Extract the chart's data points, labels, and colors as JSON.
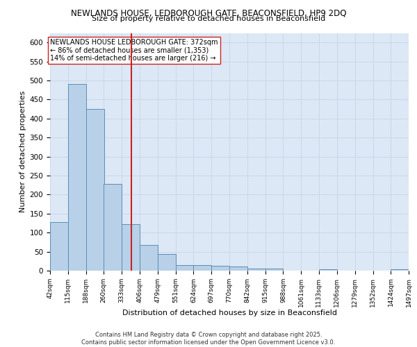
{
  "title1": "NEWLANDS HOUSE, LEDBOROUGH GATE, BEACONSFIELD, HP9 2DQ",
  "title2": "Size of property relative to detached houses in Beaconsfield",
  "xlabel": "Distribution of detached houses by size in Beaconsfield",
  "ylabel": "Number of detached properties",
  "bar_left_edges": [
    42,
    115,
    188,
    260,
    333,
    406,
    479,
    551,
    624,
    697,
    770,
    842,
    915,
    988,
    1061,
    1133,
    1206,
    1279,
    1352,
    1424
  ],
  "bar_heights": [
    128,
    490,
    425,
    228,
    122,
    67,
    43,
    15,
    15,
    12,
    11,
    6,
    5,
    0,
    0,
    4,
    0,
    0,
    0,
    3
  ],
  "bin_width": 73,
  "tick_labels": [
    "42sqm",
    "115sqm",
    "188sqm",
    "260sqm",
    "333sqm",
    "406sqm",
    "479sqm",
    "551sqm",
    "624sqm",
    "697sqm",
    "770sqm",
    "842sqm",
    "915sqm",
    "988sqm",
    "1061sqm",
    "1133sqm",
    "1206sqm",
    "1279sqm",
    "1352sqm",
    "1424sqm",
    "1497sqm"
  ],
  "property_size": 372,
  "bar_color": "#b8d0e8",
  "bar_edge_color": "#5b8db8",
  "vline_color": "#cc2222",
  "grid_color": "#c8d4e8",
  "background_color": "#dce8f5",
  "annotation_text": "NEWLANDS HOUSE LEDBOROUGH GATE: 372sqm\n← 86% of detached houses are smaller (1,353)\n14% of semi-detached houses are larger (216) →",
  "footer": "Contains HM Land Registry data © Crown copyright and database right 2025.\nContains public sector information licensed under the Open Government Licence v3.0.",
  "ylim": [
    0,
    625
  ],
  "yticks": [
    0,
    50,
    100,
    150,
    200,
    250,
    300,
    350,
    400,
    450,
    500,
    550,
    600
  ]
}
